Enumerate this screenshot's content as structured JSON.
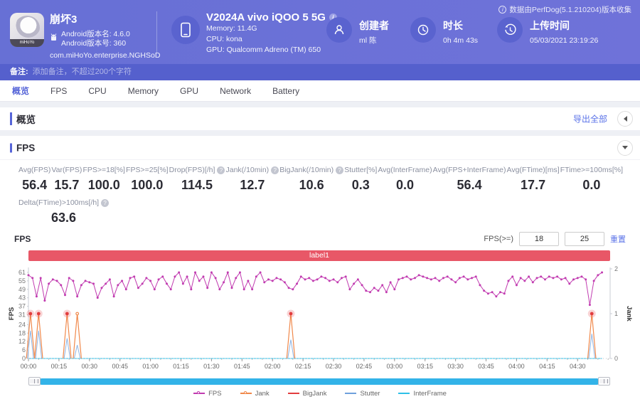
{
  "header": {
    "app": {
      "name": "崩坏3",
      "icon_label": "miHoYo",
      "android_version": "Android版本名: 4.6.0",
      "android_build": "Android版本号: 360",
      "package": "com.miHoYo.enterprise.NGHSoD"
    },
    "device": {
      "title": "V2024A vivo iQOO 5 5G",
      "info_glyph": "i",
      "memory": "Memory: 11.4G",
      "cpu": "CPU: kona",
      "gpu": "GPU: Qualcomm Adreno (TM) 650"
    },
    "creator": {
      "label": "创建者",
      "value": "ml 陈"
    },
    "duration": {
      "label": "时长",
      "value": "0h 4m 43s"
    },
    "upload": {
      "label": "上传时间",
      "value": "05/03/2021 23:19:26"
    },
    "source_note": "数据由PerfDog(5.1.210204)版本收集",
    "source_note_glyph": "i"
  },
  "note_bar": {
    "label": "备注:",
    "placeholder": "添加备注，不超过200个字符"
  },
  "tabs": [
    {
      "label": "概览",
      "active": true
    },
    {
      "label": "FPS",
      "active": false
    },
    {
      "label": "CPU",
      "active": false
    },
    {
      "label": "Memory",
      "active": false
    },
    {
      "label": "GPU",
      "active": false
    },
    {
      "label": "Network",
      "active": false
    },
    {
      "label": "Battery",
      "active": false
    }
  ],
  "overview_section": {
    "title": "概览",
    "export_label": "导出全部"
  },
  "fps_section": {
    "title": "FPS",
    "stats": [
      {
        "label": "Avg(FPS)",
        "value": "56.4",
        "help": false
      },
      {
        "label": "Var(FPS)",
        "value": "15.7",
        "help": false
      },
      {
        "label": "FPS>=18[%]",
        "value": "100.0",
        "help": false
      },
      {
        "label": "FPS>=25[%]",
        "value": "100.0",
        "help": false
      },
      {
        "label": "Drop(FPS)[/h]",
        "value": "114.5",
        "help": true
      },
      {
        "label": "Jank(/10min)",
        "value": "12.7",
        "help": true
      },
      {
        "label": "BigJank(/10min)",
        "value": "10.6",
        "help": true
      },
      {
        "label": "Stutter[%]",
        "value": "0.3",
        "help": false
      },
      {
        "label": "Avg(InterFrame)",
        "value": "0.0",
        "help": false
      },
      {
        "label": "Avg(FPS+InterFrame)",
        "value": "56.4",
        "help": false
      },
      {
        "label": "Avg(FTime)[ms]",
        "value": "17.7",
        "help": false
      },
      {
        "label": "FTime>=100ms[%]",
        "value": "0.0",
        "help": false
      }
    ],
    "stats_row2": [
      {
        "label": "Delta(FTime)>100ms[/h]",
        "value": "63.6",
        "help": true
      }
    ],
    "chart_title": "FPS",
    "threshold_label": "FPS(>=)",
    "threshold_low": "18",
    "threshold_high": "25",
    "reset_label": "重置"
  },
  "chart_data": {
    "type": "line",
    "banner_label": "label1",
    "banner_color": "#e85767",
    "ylabel_left": "FPS",
    "ylabel_right": "Jank",
    "y_ticks_left": [
      61,
      55,
      49,
      43,
      37,
      31,
      24,
      18,
      12,
      6,
      0
    ],
    "ylim_left": [
      0,
      63.5
    ],
    "y_ticks_right": [
      2,
      1,
      0
    ],
    "ylim_right": [
      0,
      2
    ],
    "x_tick_seconds": [
      0,
      15,
      30,
      45,
      60,
      75,
      90,
      105,
      120,
      135,
      150,
      165,
      180,
      195,
      210,
      225,
      240,
      255,
      270
    ],
    "x_tick_labels": [
      "00:00",
      "00:15",
      "00:30",
      "00:45",
      "01:00",
      "01:15",
      "01:30",
      "01:45",
      "02:00",
      "02:15",
      "02:30",
      "02:45",
      "03:00",
      "03:15",
      "03:30",
      "03:45",
      "04:00",
      "04:15",
      "04:30"
    ],
    "x_max_seconds": 286,
    "fps_series": {
      "name": "FPS",
      "color": "#c13bb0",
      "axis": "left",
      "sample_interval_s": 2,
      "values": [
        59,
        57,
        44,
        57,
        41,
        53,
        56,
        55,
        52,
        45,
        57,
        55,
        44,
        52,
        55,
        54,
        53,
        43,
        50,
        53,
        56,
        44,
        52,
        55,
        49,
        57,
        58,
        50,
        53,
        57,
        55,
        49,
        56,
        58,
        53,
        49,
        58,
        61,
        53,
        58,
        49,
        61,
        55,
        58,
        50,
        61,
        57,
        49,
        54,
        61,
        50,
        57,
        61,
        49,
        55,
        49,
        58,
        61,
        54,
        56,
        55,
        57,
        56,
        54,
        50,
        49,
        53,
        58,
        56,
        57,
        55,
        56,
        58,
        57,
        55,
        56,
        54,
        57,
        58,
        49,
        53,
        56,
        52,
        48,
        47,
        50,
        48,
        52,
        47,
        54,
        49,
        56,
        57,
        58,
        56,
        57,
        59,
        58,
        57,
        56,
        57,
        55,
        57,
        58,
        56,
        54,
        57,
        58,
        56,
        57,
        58,
        52,
        48,
        46,
        47,
        44,
        47,
        46,
        55,
        58,
        52,
        57,
        55,
        58,
        54,
        57,
        58,
        56,
        58,
        57,
        58,
        56,
        57,
        53,
        56,
        57,
        58,
        56,
        38,
        55,
        59,
        61
      ]
    },
    "jank_series": {
      "name": "Jank",
      "color": "#f0884a",
      "axis": "right",
      "peak_value": 1,
      "base_halfwidth_s": 2,
      "events": [
        {
          "t": 1,
          "big": true
        },
        {
          "t": 5,
          "big": true
        },
        {
          "t": 19,
          "big": true
        },
        {
          "t": 24,
          "big": false
        },
        {
          "t": 129,
          "big": true
        },
        {
          "t": 277,
          "big": true
        }
      ]
    },
    "bigjank_series": {
      "name": "BigJank",
      "color": "#e23c3e",
      "axis": "right"
    },
    "stutter_series": {
      "name": "Stutter",
      "color": "#8fb4e3",
      "axis": "right",
      "base_halfwidth_s": 1.5,
      "events": [
        {
          "t": 1,
          "v": 0.62
        },
        {
          "t": 5,
          "v": 0.62
        },
        {
          "t": 19,
          "v": 0.45
        },
        {
          "t": 24,
          "v": 0.3
        },
        {
          "t": 129,
          "v": 0.42
        },
        {
          "t": 277,
          "v": 0.55
        }
      ]
    },
    "interframe_series": {
      "name": "InterFrame",
      "color": "#2ec0e8",
      "axis": "left",
      "constant_value": 0
    },
    "legend": [
      {
        "name": "FPS",
        "color": "#c13bb0",
        "dot": true
      },
      {
        "name": "Jank",
        "color": "#f0884a",
        "dot": true
      },
      {
        "name": "BigJank",
        "color": "#e23c3e",
        "dot": false
      },
      {
        "name": "Stutter",
        "color": "#6fa0dc",
        "dot": false
      },
      {
        "name": "InterFrame",
        "color": "#2ec0e8",
        "dot": false
      }
    ]
  }
}
